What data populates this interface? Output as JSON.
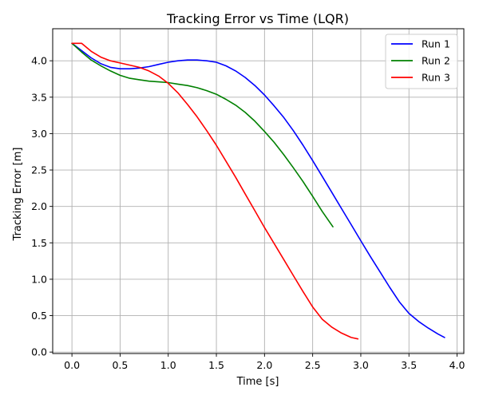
{
  "chart_data": {
    "type": "line",
    "title": "Tracking Error vs Time (LQR)",
    "xlabel": "Time [s]",
    "ylabel": "Tracking Error [m]",
    "xlim": [
      -0.2,
      4.07
    ],
    "ylim": [
      -0.02,
      4.44
    ],
    "grid": true,
    "legend_position": "top-right",
    "x_ticks": [
      {
        "value": 0.0,
        "label": "0.0"
      },
      {
        "value": 0.5,
        "label": "0.5"
      },
      {
        "value": 1.0,
        "label": "1.0"
      },
      {
        "value": 1.5,
        "label": "1.5"
      },
      {
        "value": 2.0,
        "label": "2.0"
      },
      {
        "value": 2.5,
        "label": "2.5"
      },
      {
        "value": 3.0,
        "label": "3.0"
      },
      {
        "value": 3.5,
        "label": "3.5"
      },
      {
        "value": 4.0,
        "label": "4.0"
      }
    ],
    "y_ticks": [
      {
        "value": 0.0,
        "label": "0.0"
      },
      {
        "value": 0.5,
        "label": "0.5"
      },
      {
        "value": 1.0,
        "label": "1.0"
      },
      {
        "value": 1.5,
        "label": "1.5"
      },
      {
        "value": 2.0,
        "label": "2.0"
      },
      {
        "value": 2.5,
        "label": "2.5"
      },
      {
        "value": 3.0,
        "label": "3.0"
      },
      {
        "value": 3.5,
        "label": "3.5"
      },
      {
        "value": 4.0,
        "label": "4.0"
      }
    ],
    "series": [
      {
        "name": "Run 1",
        "color": "#0000ff",
        "points": [
          [
            0.0,
            4.24
          ],
          [
            0.1,
            4.14
          ],
          [
            0.2,
            4.04
          ],
          [
            0.3,
            3.96
          ],
          [
            0.4,
            3.91
          ],
          [
            0.5,
            3.89
          ],
          [
            0.6,
            3.89
          ],
          [
            0.7,
            3.9
          ],
          [
            0.8,
            3.92
          ],
          [
            0.9,
            3.95
          ],
          [
            1.0,
            3.98
          ],
          [
            1.1,
            4.0
          ],
          [
            1.2,
            4.01
          ],
          [
            1.3,
            4.01
          ],
          [
            1.4,
            4.0
          ],
          [
            1.5,
            3.98
          ],
          [
            1.6,
            3.93
          ],
          [
            1.7,
            3.86
          ],
          [
            1.8,
            3.77
          ],
          [
            1.9,
            3.66
          ],
          [
            2.0,
            3.53
          ],
          [
            2.1,
            3.38
          ],
          [
            2.2,
            3.22
          ],
          [
            2.3,
            3.04
          ],
          [
            2.4,
            2.84
          ],
          [
            2.5,
            2.63
          ],
          [
            2.6,
            2.41
          ],
          [
            2.7,
            2.19
          ],
          [
            2.8,
            1.97
          ],
          [
            2.9,
            1.75
          ],
          [
            3.0,
            1.53
          ],
          [
            3.1,
            1.31
          ],
          [
            3.2,
            1.1
          ],
          [
            3.3,
            0.89
          ],
          [
            3.4,
            0.69
          ],
          [
            3.5,
            0.53
          ],
          [
            3.6,
            0.42
          ],
          [
            3.7,
            0.33
          ],
          [
            3.8,
            0.25
          ],
          [
            3.87,
            0.2
          ]
        ]
      },
      {
        "name": "Run 2",
        "color": "#008000",
        "points": [
          [
            0.0,
            4.24
          ],
          [
            0.1,
            4.12
          ],
          [
            0.2,
            4.01
          ],
          [
            0.3,
            3.93
          ],
          [
            0.4,
            3.86
          ],
          [
            0.5,
            3.8
          ],
          [
            0.6,
            3.76
          ],
          [
            0.7,
            3.74
          ],
          [
            0.8,
            3.72
          ],
          [
            0.9,
            3.71
          ],
          [
            1.0,
            3.7
          ],
          [
            1.1,
            3.68
          ],
          [
            1.2,
            3.66
          ],
          [
            1.3,
            3.63
          ],
          [
            1.4,
            3.59
          ],
          [
            1.5,
            3.54
          ],
          [
            1.6,
            3.47
          ],
          [
            1.7,
            3.39
          ],
          [
            1.8,
            3.29
          ],
          [
            1.9,
            3.17
          ],
          [
            2.0,
            3.03
          ],
          [
            2.1,
            2.88
          ],
          [
            2.2,
            2.71
          ],
          [
            2.3,
            2.53
          ],
          [
            2.4,
            2.34
          ],
          [
            2.5,
            2.14
          ],
          [
            2.6,
            1.93
          ],
          [
            2.71,
            1.72
          ]
        ]
      },
      {
        "name": "Run 3",
        "color": "#ff0000",
        "points": [
          [
            0.0,
            4.24
          ],
          [
            0.1,
            4.24
          ],
          [
            0.2,
            4.13
          ],
          [
            0.3,
            4.05
          ],
          [
            0.4,
            4.0
          ],
          [
            0.5,
            3.97
          ],
          [
            0.6,
            3.94
          ],
          [
            0.7,
            3.91
          ],
          [
            0.8,
            3.86
          ],
          [
            0.9,
            3.79
          ],
          [
            1.0,
            3.69
          ],
          [
            1.1,
            3.56
          ],
          [
            1.2,
            3.4
          ],
          [
            1.3,
            3.23
          ],
          [
            1.4,
            3.04
          ],
          [
            1.5,
            2.84
          ],
          [
            1.6,
            2.62
          ],
          [
            1.7,
            2.4
          ],
          [
            1.8,
            2.17
          ],
          [
            1.9,
            1.94
          ],
          [
            2.0,
            1.71
          ],
          [
            2.1,
            1.49
          ],
          [
            2.2,
            1.27
          ],
          [
            2.3,
            1.05
          ],
          [
            2.4,
            0.83
          ],
          [
            2.5,
            0.62
          ],
          [
            2.6,
            0.45
          ],
          [
            2.7,
            0.34
          ],
          [
            2.8,
            0.26
          ],
          [
            2.9,
            0.2
          ],
          [
            2.97,
            0.18
          ]
        ]
      }
    ]
  }
}
